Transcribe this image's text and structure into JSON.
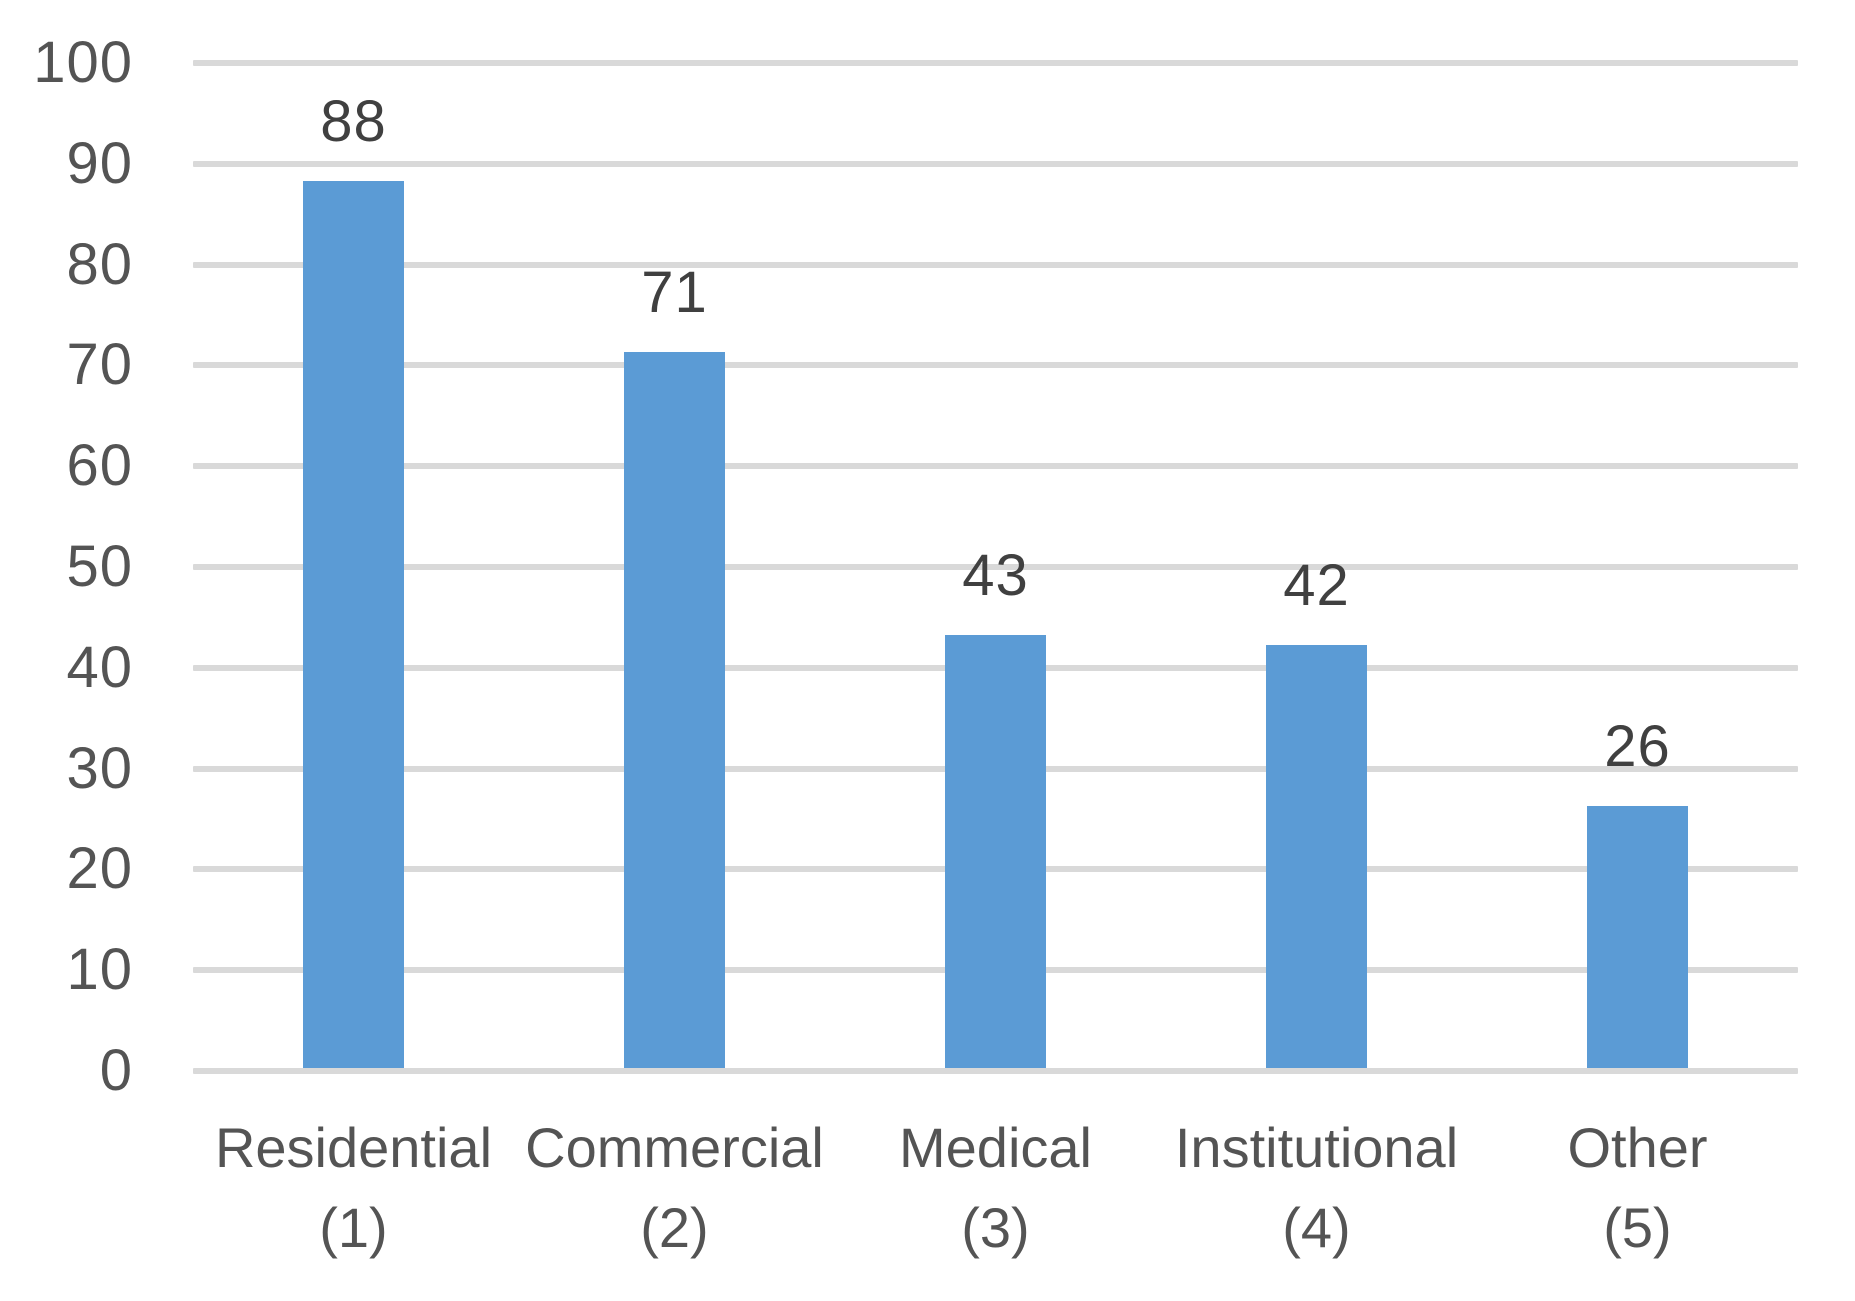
{
  "chart_data": {
    "type": "bar",
    "title": "",
    "xlabel": "",
    "ylabel": "",
    "categories": [
      {
        "line1": "Residential",
        "line2": "(1)"
      },
      {
        "line1": "Commercial",
        "line2": "(2)"
      },
      {
        "line1": "Medical",
        "line2": "(3)"
      },
      {
        "line1": "Institutional",
        "line2": "(4)"
      },
      {
        "line1": "Other",
        "line2": "(5)"
      }
    ],
    "values": [
      88,
      71,
      43,
      42,
      26
    ],
    "data_labels": [
      "88",
      "71",
      "43",
      "42",
      "26"
    ],
    "ylim": [
      0,
      100
    ],
    "ytick_step": 10,
    "ytick_labels": [
      "0",
      "10",
      "20",
      "30",
      "40",
      "50",
      "60",
      "70",
      "80",
      "90",
      "100"
    ],
    "grid": true,
    "legend": false,
    "colors": {
      "bar": "#5B9BD5",
      "gridline": "#D9D9D9",
      "axis_text": "#545454",
      "data_label_text": "#404040",
      "background": "#FFFFFF"
    }
  }
}
